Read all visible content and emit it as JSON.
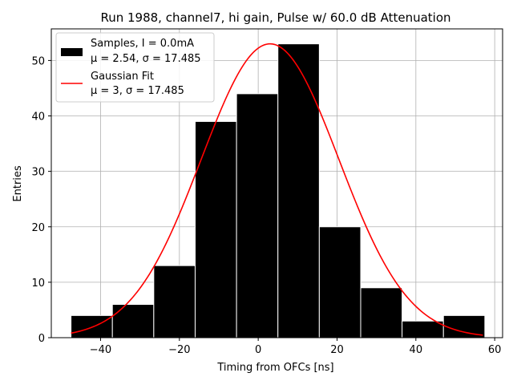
{
  "chart_data": {
    "type": "bar",
    "title": "Run 1988, channel7, hi gain, Pulse w/ 60.0 dB Attenuation",
    "xlabel": "Timing from OFCs [ns]",
    "ylabel": "Entries",
    "xlim": [
      -52.5,
      62
    ],
    "ylim": [
      0,
      55.7
    ],
    "xticks": [
      -40,
      -20,
      0,
      20,
      40,
      60
    ],
    "yticks": [
      0,
      10,
      20,
      30,
      40,
      50
    ],
    "grid": true,
    "histogram": {
      "name": "Samples",
      "bin_edges": [
        -47.5,
        -37.0,
        -26.5,
        -16.0,
        -5.5,
        5.0,
        15.5,
        26.0,
        36.5,
        47.0,
        57.5
      ],
      "counts": [
        4,
        6,
        13,
        39,
        44,
        53,
        20,
        9,
        3,
        4
      ],
      "color": "#000000"
    },
    "fit": {
      "name": "Gaussian Fit",
      "mu": 3,
      "sigma": 17.485,
      "amplitude": 53,
      "x_range": [
        -47.5,
        57.0
      ],
      "color": "#ff0000"
    },
    "legend": {
      "placement": "top-left",
      "entries": [
        {
          "line1": "Samples, I = 0.0mA",
          "line2": "μ = 2.54, σ = 17.485"
        },
        {
          "line1": "Gaussian Fit",
          "line2": "μ = 3, σ = 17.485"
        }
      ]
    }
  }
}
